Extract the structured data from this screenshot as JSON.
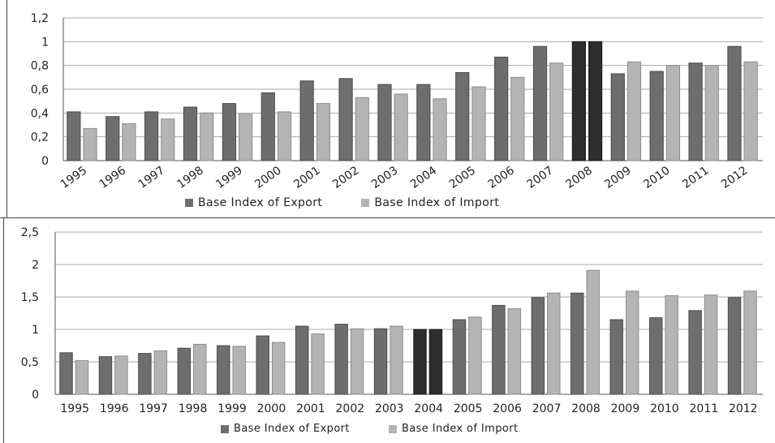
{
  "chart_data": [
    {
      "type": "bar",
      "categories": [
        "1995",
        "1996",
        "1997",
        "1998",
        "1999",
        "2000",
        "2001",
        "2002",
        "2003",
        "2004",
        "2005",
        "2006",
        "2007",
        "2008",
        "2009",
        "2010",
        "2011",
        "2012"
      ],
      "series": [
        {
          "name": "Base Index of Export",
          "values": [
            0.41,
            0.37,
            0.41,
            0.45,
            0.48,
            0.57,
            0.67,
            0.69,
            0.64,
            0.64,
            0.74,
            0.87,
            0.96,
            1.0,
            0.73,
            0.75,
            0.82,
            0.96
          ]
        },
        {
          "name": "Base Index of Import",
          "values": [
            0.27,
            0.31,
            0.35,
            0.4,
            0.39,
            0.41,
            0.48,
            0.53,
            0.56,
            0.52,
            0.62,
            0.7,
            0.82,
            1.0,
            0.83,
            0.8,
            0.8,
            0.83
          ]
        }
      ],
      "highlight_category": "2008",
      "y_ticks": [
        "0",
        "0,2",
        "0,4",
        "0,6",
        "0,8",
        "1",
        "1,2"
      ],
      "ylim": [
        0,
        1.2
      ],
      "grid": true,
      "legend_position": "bottom",
      "colors": {
        "export": "#6e6e6e",
        "import": "#b4b4b4",
        "highlight": "#2e2e2e"
      }
    },
    {
      "type": "bar",
      "categories": [
        "1995",
        "1996",
        "1997",
        "1998",
        "1999",
        "2000",
        "2001",
        "2002",
        "2003",
        "2004",
        "2005",
        "2006",
        "2007",
        "2008",
        "2009",
        "2010",
        "2011",
        "2012"
      ],
      "series": [
        {
          "name": "Base Index of Export",
          "values": [
            0.64,
            0.58,
            0.63,
            0.71,
            0.75,
            0.9,
            1.05,
            1.08,
            1.01,
            1.0,
            1.15,
            1.37,
            1.49,
            1.56,
            1.15,
            1.18,
            1.29,
            1.49
          ]
        },
        {
          "name": "Base Index of Import",
          "values": [
            0.52,
            0.59,
            0.67,
            0.77,
            0.74,
            0.8,
            0.93,
            1.01,
            1.05,
            1.0,
            1.19,
            1.32,
            1.56,
            1.91,
            1.59,
            1.52,
            1.53,
            1.59
          ]
        }
      ],
      "highlight_category": "2004",
      "y_ticks": [
        "0",
        "0,5",
        "1",
        "1,5",
        "2",
        "2,5"
      ],
      "ylim": [
        0,
        2.5
      ],
      "grid": true,
      "legend_position": "bottom",
      "colors": {
        "export": "#6e6e6e",
        "import": "#b4b4b4",
        "highlight": "#2e2e2e"
      }
    }
  ]
}
